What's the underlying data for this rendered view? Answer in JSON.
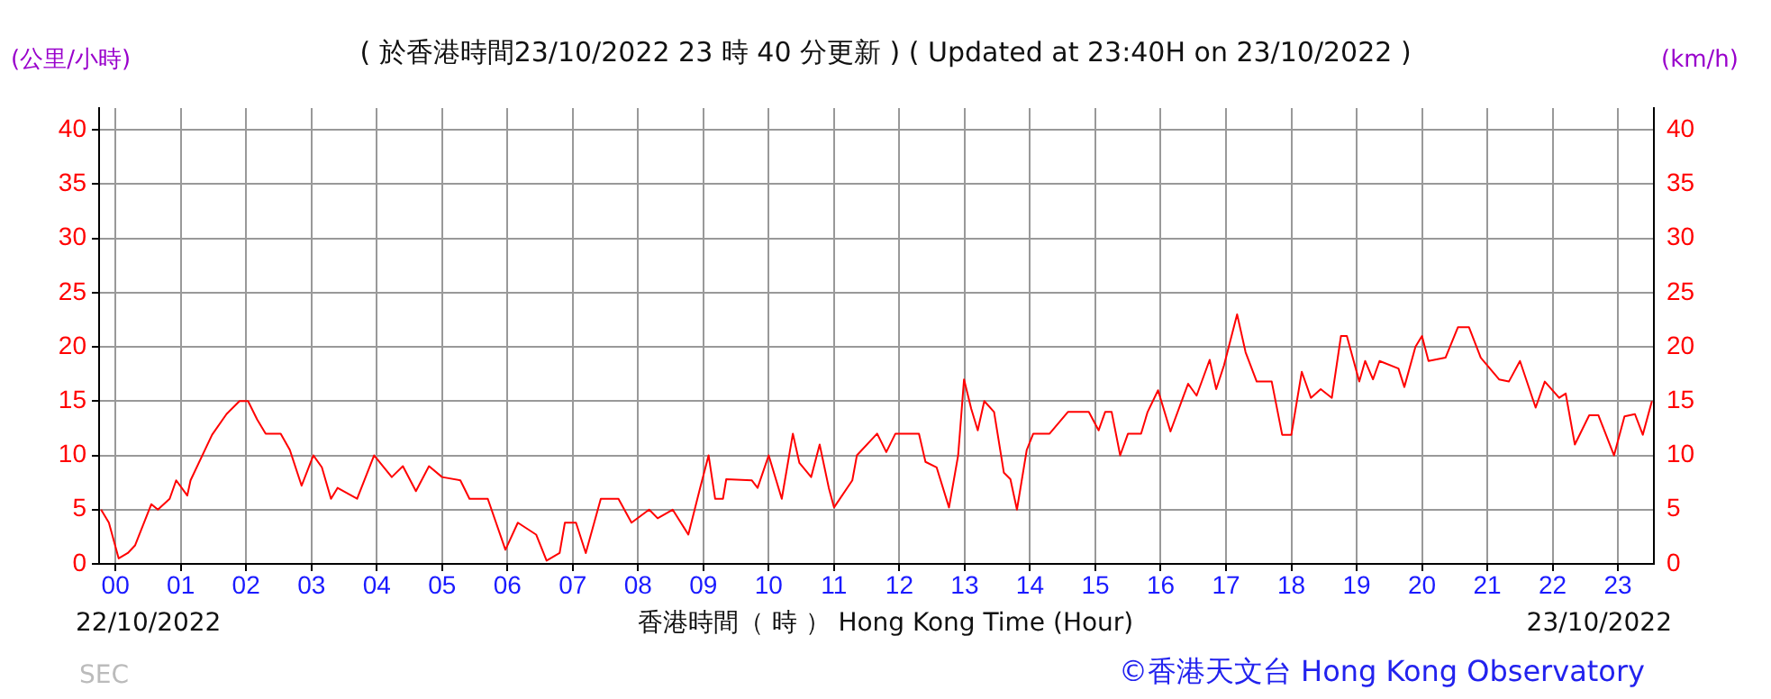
{
  "chart_data": {
    "type": "line",
    "title": "( 於香港時間23/10/2022 23 時 40 分更新 ) ( Updated at 23:40H on 23/10/2022 )",
    "xlabel": "香港時間（ 時 ） Hong Kong Time (Hour)",
    "ylabel": "(公里/小時)",
    "y2label": "(km/h)",
    "annotations": [
      "22/10/2022",
      "23/10/2022",
      "SEC",
      "©香港天文台 Hong Kong Observatory"
    ],
    "x": [
      -0.22,
      -0.1,
      0.05,
      0.19,
      0.3,
      0.55,
      0.65,
      0.83,
      0.93,
      1.1,
      1.15,
      1.48,
      1.7,
      1.9,
      2.03,
      2.17,
      2.3,
      2.53,
      2.67,
      2.85,
      3.03,
      3.16,
      3.3,
      3.4,
      3.7,
      3.96,
      4.23,
      4.4,
      4.6,
      4.8,
      5.0,
      5.28,
      5.42,
      5.7,
      5.97,
      6.16,
      6.44,
      6.6,
      6.8,
      6.88,
      7.05,
      7.2,
      7.43,
      7.7,
      7.9,
      8.17,
      8.3,
      8.53,
      8.77,
      8.95,
      9.08,
      9.18,
      9.3,
      9.35,
      9.74,
      9.83,
      10.0,
      10.2,
      10.37,
      10.47,
      10.65,
      10.78,
      10.92,
      11.0,
      11.28,
      11.35,
      11.66,
      11.8,
      11.94,
      12.3,
      12.4,
      12.57,
      12.76,
      12.9,
      12.99,
      13.1,
      13.2,
      13.3,
      13.45,
      13.6,
      13.7,
      13.8,
      13.95,
      14.05,
      14.3,
      14.58,
      14.9,
      15.05,
      15.15,
      15.25,
      15.38,
      15.5,
      15.7,
      15.8,
      15.96,
      16.15,
      16.34,
      16.42,
      16.55,
      16.75,
      16.85,
      16.97,
      17.17,
      17.3,
      17.47,
      17.7,
      17.86,
      18.0,
      18.16,
      18.3,
      18.45,
      18.62,
      18.76,
      18.85,
      19.04,
      19.13,
      19.25,
      19.35,
      19.64,
      19.73,
      19.9,
      20.0,
      20.1,
      20.36,
      20.55,
      20.72,
      20.9,
      21.18,
      21.33,
      21.5,
      21.74,
      21.88,
      22.1,
      22.2,
      22.34,
      22.56,
      22.7,
      22.94,
      23.1,
      23.26,
      23.38,
      23.52
    ],
    "series": [
      {
        "color": "#ff0000",
        "values": [
          5,
          3.8,
          0.5,
          1,
          1.7,
          5.5,
          5,
          6,
          7.7,
          6.3,
          7.7,
          11.9,
          13.8,
          15,
          15,
          13.3,
          12,
          12,
          10.5,
          7.2,
          10,
          8.9,
          6,
          7,
          6,
          10,
          8,
          9,
          6.7,
          9,
          8,
          7.7,
          6,
          6,
          1.3,
          3.8,
          2.7,
          0.3,
          1,
          3.8,
          3.8,
          1,
          6,
          6,
          3.8,
          5,
          4.2,
          5,
          2.7,
          7,
          10,
          6,
          6,
          7.8,
          7.7,
          7,
          10,
          6,
          12,
          9.3,
          8,
          11,
          7,
          5.2,
          7.7,
          10,
          12,
          10.3,
          12,
          12,
          9.4,
          8.9,
          5.2,
          10,
          17,
          14.3,
          12.3,
          15,
          14,
          8.4,
          7.8,
          5,
          10.5,
          12,
          12,
          14,
          14,
          12.3,
          14,
          14,
          10,
          12,
          12,
          14,
          16,
          12.2,
          15.3,
          16.6,
          15.5,
          18.8,
          16.1,
          18.3,
          23,
          19.5,
          16.8,
          16.8,
          11.9,
          11.9,
          17.7,
          15.3,
          16.1,
          15.3,
          21,
          21,
          16.8,
          18.7,
          17,
          18.7,
          18,
          16.3,
          20,
          21,
          18.7,
          19,
          21.8,
          21.8,
          19,
          17,
          16.8,
          18.7,
          14.4,
          16.8,
          15.3,
          15.7,
          11,
          13.7,
          13.7,
          10,
          13.6,
          13.8,
          11.9,
          15
        ]
      }
    ],
    "xlim": [
      -0.25,
      23.55
    ],
    "xticks": [
      {
        "value": 0,
        "label": "00"
      },
      {
        "value": 1,
        "label": "01"
      },
      {
        "value": 2,
        "label": "02"
      },
      {
        "value": 3,
        "label": "03"
      },
      {
        "value": 4,
        "label": "04"
      },
      {
        "value": 5,
        "label": "05"
      },
      {
        "value": 6,
        "label": "06"
      },
      {
        "value": 7,
        "label": "07"
      },
      {
        "value": 8,
        "label": "08"
      },
      {
        "value": 9,
        "label": "09"
      },
      10,
      11,
      12,
      13,
      14,
      15,
      16,
      17,
      18,
      19,
      20,
      21,
      22,
      23
    ],
    "ylim": [
      0,
      42
    ],
    "yticks": [
      0,
      5,
      10,
      15,
      20,
      25,
      30,
      35,
      40
    ],
    "y2lim": [
      0,
      42
    ],
    "y2ticks": [
      0,
      5,
      10,
      15,
      20,
      25,
      30,
      35,
      40
    ],
    "grid": true
  }
}
